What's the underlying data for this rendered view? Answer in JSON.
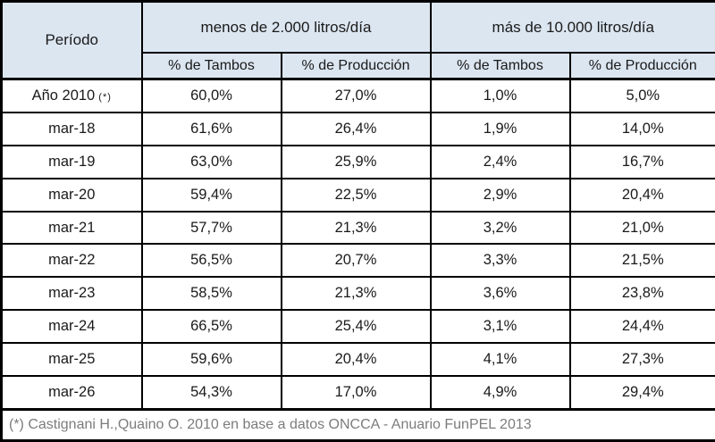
{
  "chart_data": {
    "type": "table",
    "header": {
      "period_label": "Período",
      "groups": [
        {
          "label": "menos de 2.000 litros/día",
          "subcolumns": [
            "% de Tambos",
            "% de Producción"
          ]
        },
        {
          "label": "más de 10.000 litros/día",
          "subcolumns": [
            "% de Tambos",
            "% de Producción"
          ]
        }
      ]
    },
    "rows": [
      {
        "period": "Año 2010",
        "note": "(*)",
        "values": [
          "60,0%",
          "27,0%",
          "1,0%",
          "5,0%"
        ]
      },
      {
        "period": "mar-18",
        "note": "",
        "values": [
          "61,6%",
          "26,4%",
          "1,9%",
          "14,0%"
        ]
      },
      {
        "period": "mar-19",
        "note": "",
        "values": [
          "63,0%",
          "25,9%",
          "2,4%",
          "16,7%"
        ]
      },
      {
        "period": "mar-20",
        "note": "",
        "values": [
          "59,4%",
          "22,5%",
          "2,9%",
          "20,4%"
        ]
      },
      {
        "period": "mar-21",
        "note": "",
        "values": [
          "57,7%",
          "21,3%",
          "3,2%",
          "21,0%"
        ]
      },
      {
        "period": "mar-22",
        "note": "",
        "values": [
          "56,5%",
          "20,7%",
          "3,3%",
          "21,5%"
        ]
      },
      {
        "period": "mar-23",
        "note": "",
        "values": [
          "58,5%",
          "21,3%",
          "3,6%",
          "23,8%"
        ]
      },
      {
        "period": "mar-24",
        "note": "",
        "values": [
          "66,5%",
          "25,4%",
          "3,1%",
          "24,4%"
        ]
      },
      {
        "period": "mar-25",
        "note": "",
        "values": [
          "59,6%",
          "20,4%",
          "4,1%",
          "27,3%"
        ]
      },
      {
        "period": "mar-26",
        "note": "",
        "values": [
          "54,3%",
          "17,0%",
          "4,9%",
          "29,4%"
        ]
      }
    ],
    "footnote": "(*) Castignani H.,Quaino O. 2010 en base a datos ONCCA - Anuario FunPEL 2013"
  },
  "colors": {
    "header_bg": "#dce6f1",
    "border": "#000000",
    "footnote_text": "#7c7c7c"
  }
}
